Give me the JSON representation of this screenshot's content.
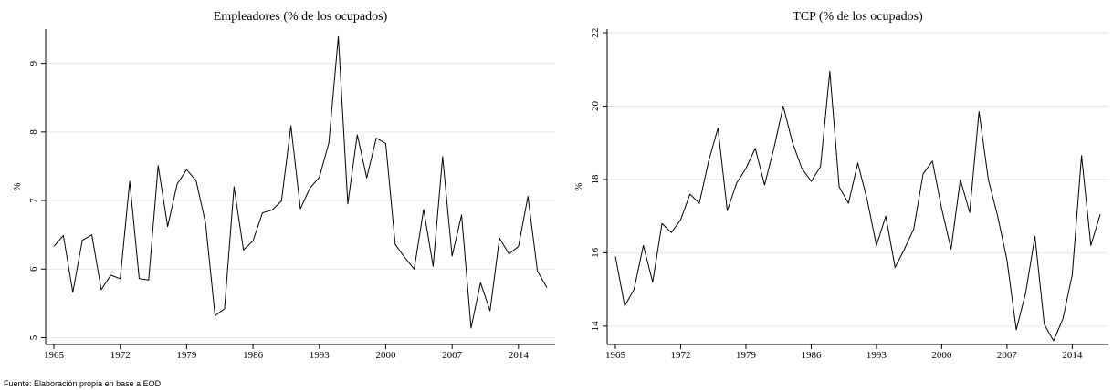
{
  "chart_data": [
    {
      "type": "line",
      "title": "Empleadores (% de los ocupados)",
      "y_label": "%",
      "color": "#000000",
      "grid": true,
      "x": [
        1965,
        1966,
        1967,
        1968,
        1969,
        1970,
        1971,
        1972,
        1973,
        1974,
        1975,
        1976,
        1977,
        1978,
        1979,
        1980,
        1981,
        1982,
        1983,
        1984,
        1985,
        1986,
        1987,
        1988,
        1989,
        1990,
        1991,
        1992,
        1993,
        1994,
        1995,
        1996,
        1997,
        1998,
        1999,
        2000,
        2001,
        2002,
        2003,
        2004,
        2005,
        2006,
        2007,
        2008,
        2009,
        2010,
        2011,
        2012,
        2013,
        2014,
        2015,
        2016,
        2017
      ],
      "values": [
        6.33,
        6.49,
        5.66,
        6.42,
        6.5,
        5.7,
        5.91,
        5.86,
        7.28,
        5.86,
        5.84,
        7.51,
        6.62,
        7.24,
        7.45,
        7.29,
        6.67,
        5.32,
        5.42,
        7.2,
        6.28,
        6.41,
        6.82,
        6.86,
        6.99,
        8.09,
        6.88,
        7.18,
        7.34,
        7.84,
        9.39,
        6.95,
        7.96,
        7.33,
        7.91,
        7.83,
        6.36,
        6.17,
        6.0,
        6.87,
        6.04,
        7.64,
        6.19,
        6.79,
        5.14,
        5.8,
        5.39,
        6.45,
        6.22,
        6.33,
        7.06,
        5.97,
        5.73
      ],
      "xlim": [
        1965,
        2017
      ],
      "xticks": [
        1965,
        1972,
        1979,
        1986,
        1993,
        2000,
        2007,
        2014
      ],
      "ylim": [
        4.9,
        9.5
      ],
      "yticks": [
        5,
        6,
        7,
        8,
        9
      ]
    },
    {
      "type": "line",
      "title": "TCP (% de los ocupados)",
      "y_label": "%",
      "color": "#000000",
      "grid": true,
      "x": [
        1965,
        1966,
        1967,
        1968,
        1969,
        1970,
        1971,
        1972,
        1973,
        1974,
        1975,
        1976,
        1977,
        1978,
        1979,
        1980,
        1981,
        1982,
        1983,
        1984,
        1985,
        1986,
        1987,
        1988,
        1989,
        1990,
        1991,
        1992,
        1993,
        1994,
        1995,
        1996,
        1997,
        1998,
        1999,
        2000,
        2001,
        2002,
        2003,
        2004,
        2005,
        2006,
        2007,
        2008,
        2009,
        2010,
        2011,
        2012,
        2013,
        2014,
        2015,
        2016,
        2017
      ],
      "values": [
        15.9,
        14.55,
        15.0,
        16.2,
        15.2,
        16.8,
        16.55,
        16.9,
        17.6,
        17.35,
        18.5,
        19.4,
        17.15,
        17.9,
        18.3,
        18.85,
        17.85,
        18.85,
        20.0,
        19.0,
        18.3,
        17.95,
        18.35,
        20.95,
        17.8,
        17.35,
        18.45,
        17.45,
        16.2,
        17.0,
        15.6,
        16.1,
        16.65,
        18.15,
        18.5,
        17.2,
        16.1,
        18.0,
        17.1,
        19.85,
        18.0,
        17.0,
        15.8,
        13.9,
        14.9,
        16.45,
        14.05,
        13.6,
        14.2,
        15.4,
        18.65,
        16.2,
        17.05
      ],
      "xlim": [
        1965,
        2017
      ],
      "xticks": [
        1965,
        1972,
        1979,
        1986,
        1993,
        2000,
        2007,
        2014
      ],
      "ylim": [
        13.5,
        22.1
      ],
      "yticks": [
        14,
        16,
        18,
        20,
        22
      ]
    }
  ],
  "source": "Fuente: Elaboración propia en base a EOD"
}
